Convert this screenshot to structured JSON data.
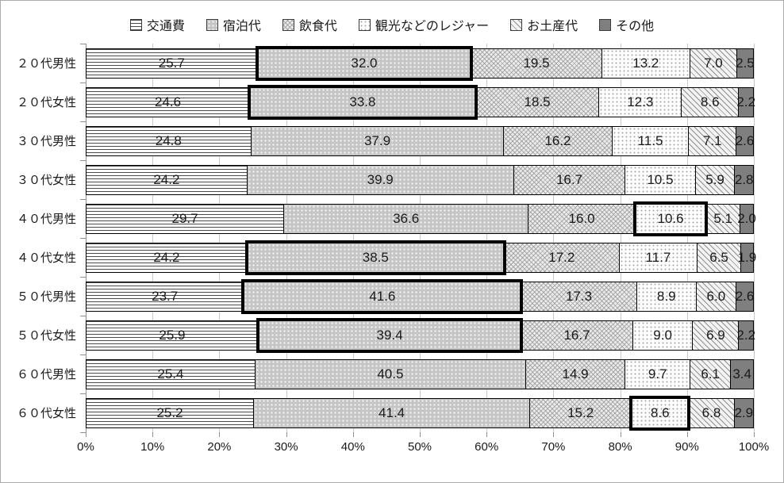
{
  "chart_data": {
    "type": "bar",
    "stacked": true,
    "orientation": "horizontal",
    "unit": "%",
    "categories": [
      "２０代男性",
      "２０代女性",
      "３０代男性",
      "３０代女性",
      "４０代男性",
      "４０代女性",
      "５０代男性",
      "５０代女性",
      "６０代男性",
      "６０代女性"
    ],
    "series": [
      {
        "name": "交通費",
        "pattern": "horizontal-lines",
        "values": [
          25.7,
          24.6,
          24.8,
          24.2,
          29.7,
          24.2,
          23.7,
          25.9,
          25.4,
          25.2
        ]
      },
      {
        "name": "宿泊代",
        "pattern": "gray-dots",
        "values": [
          32.0,
          33.8,
          37.9,
          39.9,
          36.6,
          38.5,
          41.6,
          39.4,
          40.5,
          41.4
        ]
      },
      {
        "name": "飲食代",
        "pattern": "light-crosshatch",
        "values": [
          19.5,
          18.5,
          16.2,
          16.7,
          16.0,
          17.2,
          17.3,
          16.7,
          14.9,
          15.2
        ]
      },
      {
        "name": "観光などのレジャー",
        "pattern": "fine-dots",
        "values": [
          13.2,
          12.3,
          11.5,
          10.5,
          10.6,
          11.7,
          8.9,
          9.0,
          9.7,
          8.6
        ]
      },
      {
        "name": "お土産代",
        "pattern": "diagonal-lines",
        "values": [
          7.0,
          8.6,
          7.1,
          5.9,
          5.1,
          6.5,
          6.0,
          6.9,
          6.1,
          6.8
        ]
      },
      {
        "name": "その他",
        "pattern": "solid-dark-gray",
        "values": [
          2.5,
          2.2,
          2.6,
          2.8,
          2.0,
          1.9,
          2.6,
          2.2,
          3.4,
          2.9
        ]
      }
    ],
    "highlighted_segments": [
      {
        "category_index": 0,
        "series_index": 1
      },
      {
        "category_index": 1,
        "series_index": 1
      },
      {
        "category_index": 4,
        "series_index": 3
      },
      {
        "category_index": 5,
        "series_index": 1
      },
      {
        "category_index": 6,
        "series_index": 1
      },
      {
        "category_index": 7,
        "series_index": 1
      },
      {
        "category_index": 9,
        "series_index": 3
      }
    ],
    "x_ticks": [
      "0%",
      "10%",
      "20%",
      "30%",
      "40%",
      "50%",
      "60%",
      "70%",
      "80%",
      "90%",
      "100%"
    ],
    "xlim": [
      0,
      100
    ],
    "grid": true,
    "legend_position": "top",
    "value_label_decimals": 1
  },
  "colors": {
    "other_segment_gray": "#7f7f7f",
    "lodging_segment_gray": "#c5c5c5",
    "gridline": "#c9c9c9",
    "highlight_border": "#000000",
    "frame_border": "#ababab"
  }
}
